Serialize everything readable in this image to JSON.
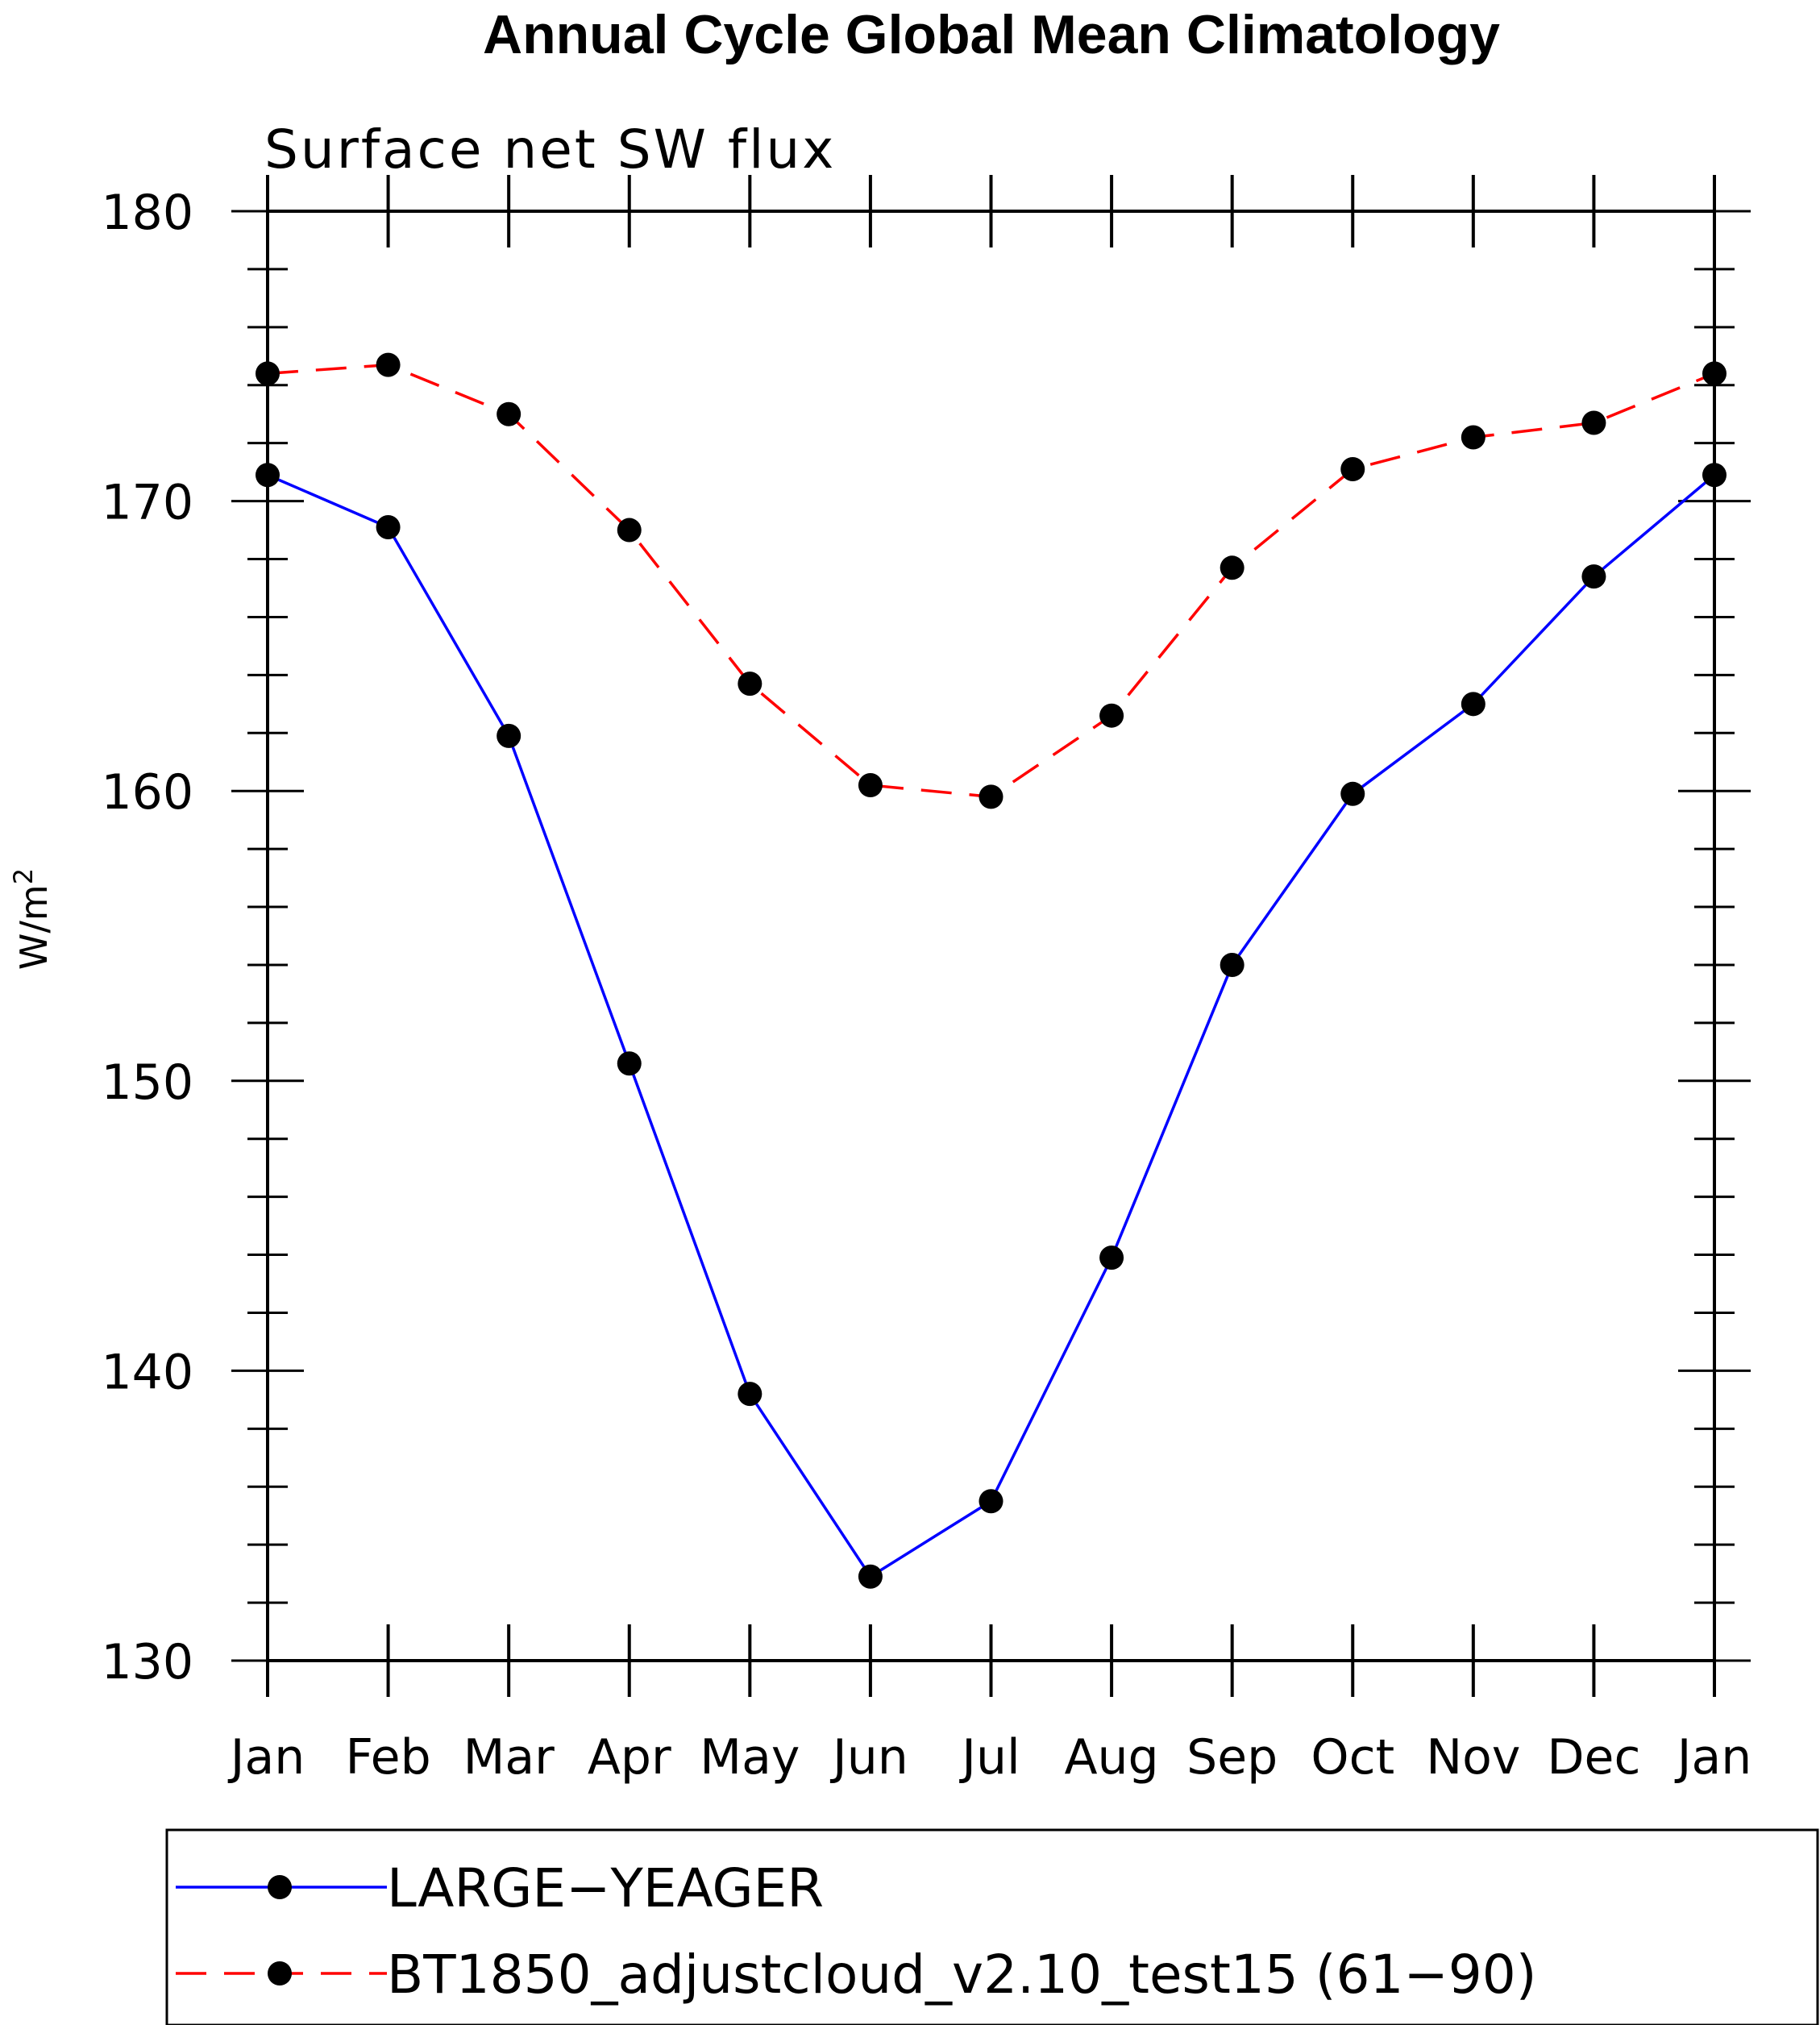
{
  "chart_data": {
    "type": "line",
    "title": "Annual Cycle Global Mean Climatology",
    "subtitle": "Surface net SW flux",
    "ylabel": "W/m",
    "ylabel_superscript": "2",
    "xlabel": "",
    "categories": [
      "Jan",
      "Feb",
      "Mar",
      "Apr",
      "May",
      "Jun",
      "Jul",
      "Aug",
      "Sep",
      "Oct",
      "Nov",
      "Dec",
      "Jan"
    ],
    "ylim": [
      130,
      180
    ],
    "yticks": [
      130,
      140,
      150,
      160,
      170,
      180
    ],
    "grid": false,
    "legend_placement": "bottom",
    "series": [
      {
        "name": "LARGE−YEAGER",
        "color": "#0000ff",
        "dash": "solid",
        "marker": "filled-circle",
        "values": [
          170.9,
          169.1,
          161.9,
          150.6,
          139.2,
          132.9,
          135.5,
          143.9,
          154.0,
          159.9,
          163.0,
          167.4,
          170.9
        ]
      },
      {
        "name": "BT1850_adjustcloud_v2.10_test15 (61−90)",
        "color": "#ff0000",
        "dash": "dashed",
        "marker": "filled-circle",
        "values": [
          174.4,
          174.7,
          173.0,
          169.0,
          163.7,
          160.2,
          159.8,
          162.6,
          167.7,
          171.1,
          172.2,
          172.7,
          174.4
        ]
      }
    ]
  }
}
